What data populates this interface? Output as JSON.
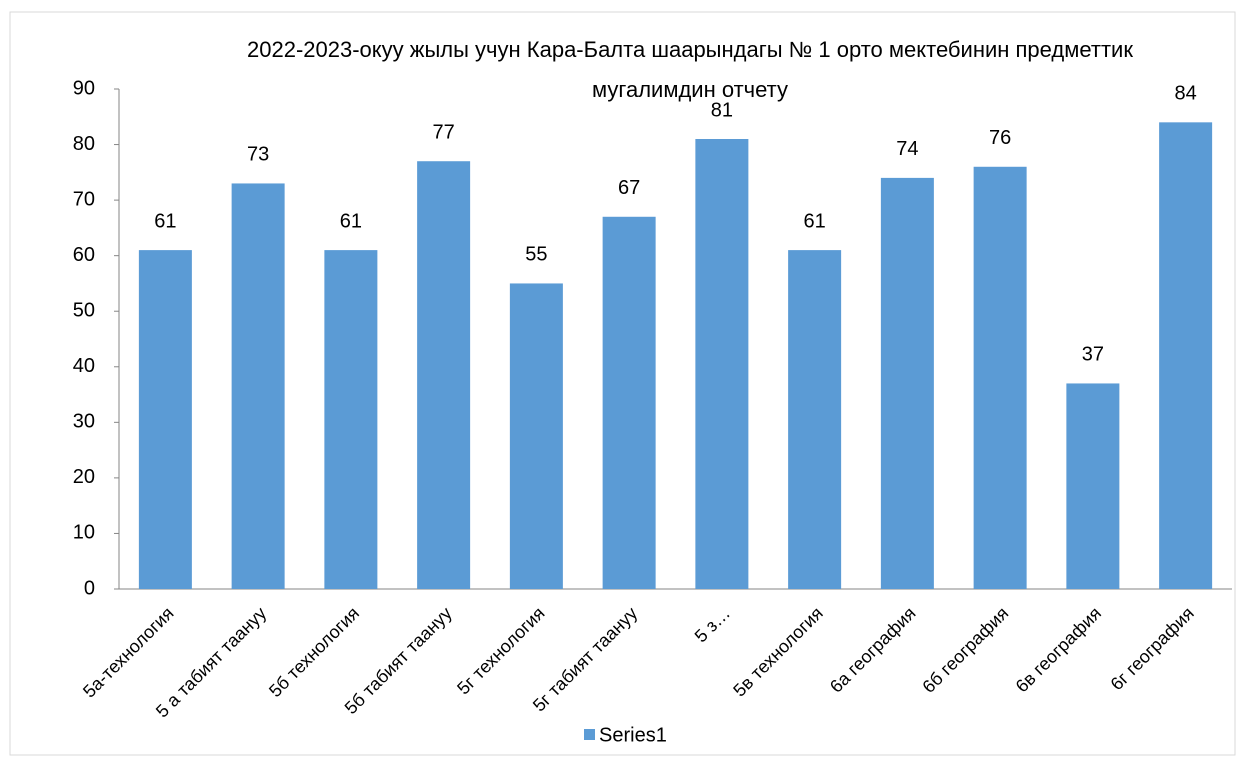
{
  "chart_data": {
    "type": "bar",
    "title": "2022-2023-окуу жылы учун Кара-Балта шаарындагы № 1 орто мектебинин предметтик мугалимдин отчету",
    "categories": [
      "5а-технология",
      "5 а табият таануу",
      "5б технология",
      "5б табият таануу",
      "5г технология",
      "5г табият таануу",
      "5 з…",
      "5в технология",
      "6а география",
      "6б география",
      "6в география",
      "6г география"
    ],
    "series": [
      {
        "name": "Series1",
        "color": "#5b9bd5",
        "values": [
          61,
          73,
          61,
          77,
          55,
          67,
          81,
          61,
          74,
          76,
          37,
          84
        ]
      }
    ],
    "ylim": [
      0,
      90
    ],
    "yticks": [
      0,
      10,
      20,
      30,
      40,
      50,
      60,
      70,
      80,
      90
    ],
    "grid": false,
    "legend": "bottom",
    "data_labels": true
  }
}
